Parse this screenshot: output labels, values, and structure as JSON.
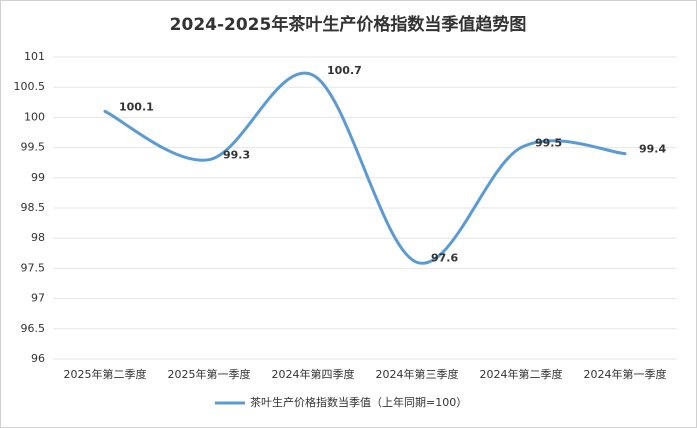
{
  "chart_data": {
    "type": "line",
    "title": "2024-2025年茶叶生产价格指数当季值趋势图",
    "categories": [
      "2025年第二季度",
      "2025年第一季度",
      "2024年第四季度",
      "2024年第三季度",
      "2024年第二季度",
      "2024年第一季度"
    ],
    "series": [
      {
        "name": "茶叶生产价格指数当季值（上年同期=100）",
        "color": "#5b9bd5",
        "values": [
          100.1,
          99.3,
          100.7,
          97.6,
          99.5,
          99.4
        ]
      }
    ],
    "ylim": [
      96,
      101
    ],
    "yticks": [
      96,
      96.5,
      97,
      97.5,
      98,
      98.5,
      99,
      99.5,
      100,
      100.5,
      101
    ],
    "grid": true,
    "smooth": true,
    "legend": "bottom"
  }
}
